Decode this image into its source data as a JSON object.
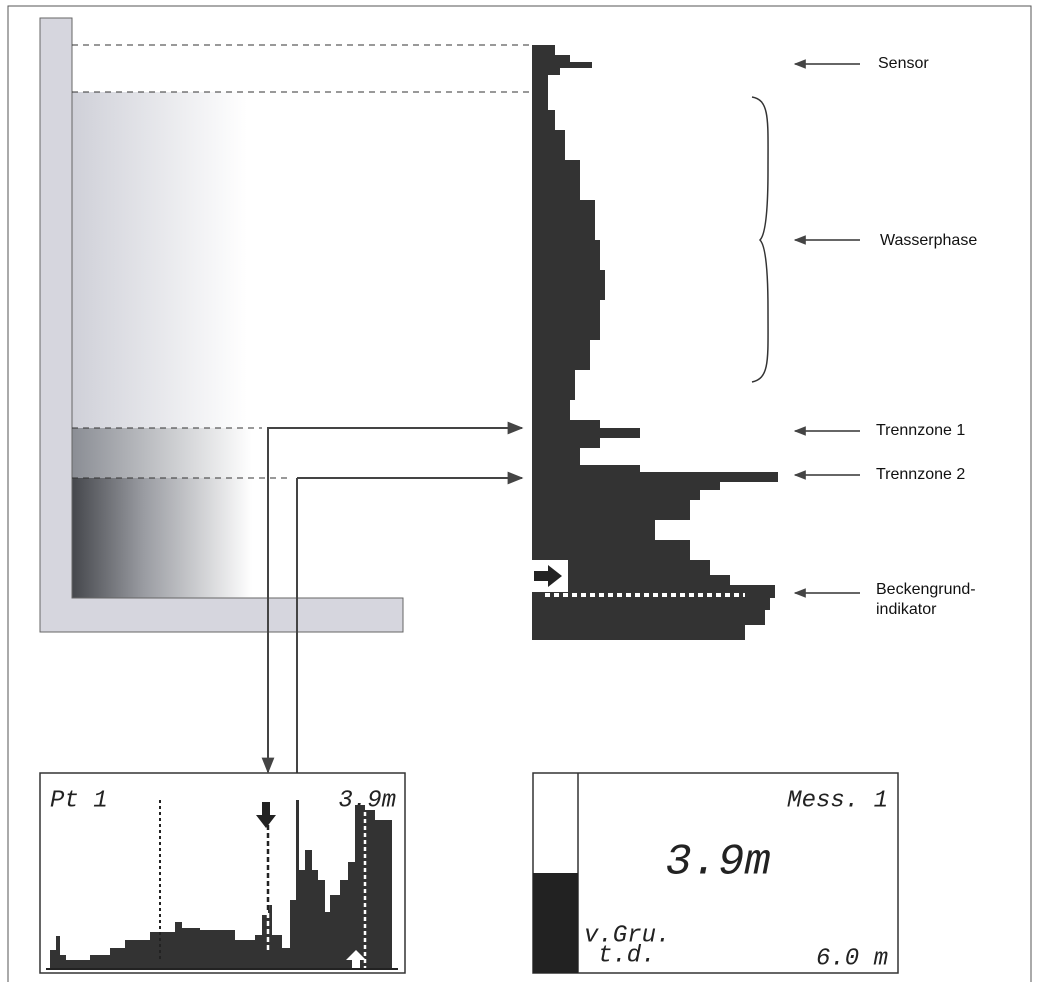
{
  "labels": {
    "sensor": "Sensor",
    "wasserphase": "Wasserphase",
    "trennzone_1": "Trennzone 1",
    "trennzone_2": "Trennzone 2",
    "beckengrund_indikator": [
      "Beckengrund-",
      "indikator"
    ]
  },
  "echo_display": {
    "title": "Pt 1",
    "value": "3.9m"
  },
  "measurement_display": {
    "title": "Mess. 1",
    "value": "3.9m",
    "line_1": "v.Gru.",
    "line_2": "t.d.",
    "distance": "6.0 m"
  }
}
